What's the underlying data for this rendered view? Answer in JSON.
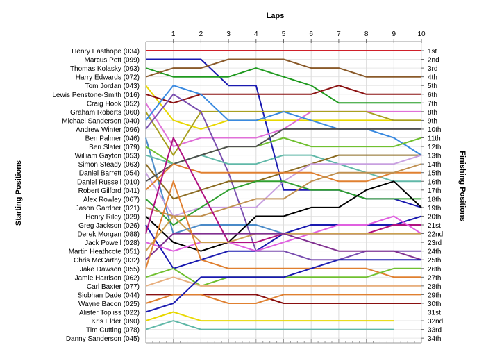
{
  "chart_data": {
    "type": "line",
    "title": "Laps",
    "xlabel": "Laps",
    "ylabel_left": "Starting Positions",
    "ylabel_right": "Finishing Positions",
    "laps": [
      1,
      2,
      3,
      4,
      5,
      6,
      7,
      8,
      9,
      10
    ],
    "position_labels": [
      "1st",
      "2nd",
      "3rd",
      "4th",
      "5th",
      "6th",
      "7th",
      "8th",
      "9th",
      "10th",
      "11th",
      "12th",
      "13th",
      "14th",
      "15th",
      "16th",
      "17th",
      "18th",
      "19th",
      "20th",
      "21st",
      "22nd",
      "23rd",
      "24th",
      "25th",
      "26th",
      "27th",
      "28th",
      "29th",
      "30th",
      "31st",
      "32nd",
      "33rd",
      "34th"
    ],
    "grid": true,
    "series": [
      {
        "name": "Henry Easthope (034)",
        "color": "#d0202a",
        "positions": [
          1,
          1,
          1,
          1,
          1,
          1,
          1,
          1,
          1,
          1,
          1
        ]
      },
      {
        "name": "Marcus Pett (099)",
        "color": "#1a1ab0",
        "positions": [
          2,
          2,
          2,
          5,
          5,
          17,
          17,
          17,
          18,
          18,
          19
        ]
      },
      {
        "name": "Thomas Kolasky (093)",
        "color": "#1f9a1f",
        "positions": [
          3,
          4,
          4,
          4,
          3,
          4,
          5,
          7,
          7,
          7,
          7
        ]
      },
      {
        "name": "Harry Edwards (072)",
        "color": "#8a5a2a",
        "positions": [
          4,
          3,
          3,
          2,
          2,
          2,
          3,
          3,
          4,
          4,
          4
        ]
      },
      {
        "name": "Tom Jordan (043)",
        "color": "#e8d800",
        "positions": [
          5,
          9,
          10,
          9,
          9,
          9,
          9,
          9,
          9,
          9,
          9
        ]
      },
      {
        "name": "Lewis Penstone-Smith (016)",
        "color": "#8a1010",
        "positions": [
          6,
          7,
          6,
          6,
          6,
          6,
          6,
          5,
          6,
          6,
          6
        ]
      },
      {
        "name": "Craig Hook (052)",
        "color": "#e070d8",
        "positions": [
          7,
          12,
          11,
          11,
          11,
          10,
          8,
          8,
          8,
          8,
          8
        ]
      },
      {
        "name": "Graham Roberts (060)",
        "color": "#a8a020",
        "positions": [
          8,
          13,
          8,
          8,
          8,
          8,
          8,
          8,
          8,
          9,
          9
        ]
      },
      {
        "name": "Michael Sanderson (040)",
        "color": "#3a8ae0",
        "positions": [
          9,
          5,
          6,
          9,
          9,
          8,
          9,
          10,
          10,
          11,
          13
        ]
      },
      {
        "name": "Andrew Winter (096)",
        "color": "#7a4fb0",
        "positions": [
          10,
          6,
          8,
          15,
          24,
          24,
          25,
          25,
          24,
          24,
          24
        ]
      },
      {
        "name": "Ben Palmer (046)",
        "color": "#4a8ac8",
        "positions": [
          11,
          22,
          21,
          21,
          21,
          22,
          22,
          22,
          22,
          22,
          22
        ]
      },
      {
        "name": "Ben Slater (079)",
        "color": "#70c030",
        "positions": [
          12,
          14,
          13,
          12,
          12,
          11,
          12,
          12,
          12,
          12,
          11
        ]
      },
      {
        "name": "William Gayton (053)",
        "color": "#60b8a8",
        "positions": [
          13,
          14,
          13,
          14,
          14,
          13,
          13,
          14,
          15,
          16,
          16
        ]
      },
      {
        "name": "Simon Steady (063)",
        "color": "#8a6a20",
        "positions": [
          14,
          18,
          17,
          16,
          16,
          15,
          14,
          13,
          13,
          13,
          13
        ]
      },
      {
        "name": "Daniel Barrett (054)",
        "color": "#c8a0e0",
        "positions": [
          15,
          20,
          19,
          19,
          19,
          16,
          14,
          14,
          14,
          14,
          13
        ]
      },
      {
        "name": "Daniel Russell (010)",
        "color": "#505050",
        "positions": [
          16,
          14,
          13,
          12,
          12,
          10,
          10,
          10,
          10,
          10,
          10
        ]
      },
      {
        "name": "Robert Gilford (041)",
        "color": "#e08030",
        "positions": [
          17,
          14,
          15,
          15,
          15,
          15,
          15,
          16,
          16,
          15,
          15
        ]
      },
      {
        "name": "Alex Rowley (067)",
        "color": "#30a030",
        "positions": [
          18,
          21,
          19,
          17,
          16,
          16,
          17,
          17,
          18,
          18,
          18
        ]
      },
      {
        "name": "Jason Gardner (021)",
        "color": "#c09050",
        "positions": [
          19,
          20,
          20,
          19,
          18,
          18,
          16,
          15,
          15,
          15,
          14
        ]
      },
      {
        "name": "Henry Riley (029)",
        "color": "#000000",
        "positions": [
          20,
          23,
          24,
          23,
          20,
          20,
          19,
          19,
          17,
          16,
          19
        ]
      },
      {
        "name": "Greg Jackson (026)",
        "color": "#1a1ab0",
        "positions": [
          21,
          26,
          25,
          24,
          24,
          22,
          21,
          21,
          21,
          21,
          20
        ]
      },
      {
        "name": "Derek Morgan (088)",
        "color": "#b01080",
        "positions": [
          22,
          11,
          17,
          23,
          23,
          22,
          22,
          22,
          22,
          21,
          21
        ]
      },
      {
        "name": "Jack Powell (028)",
        "color": "#e060e0",
        "positions": [
          23,
          24,
          23,
          23,
          24,
          23,
          22,
          21,
          21,
          20,
          22
        ]
      },
      {
        "name": "Martin Heathcote (051)",
        "color": "#cca050",
        "positions": [
          24,
          20,
          23,
          23,
          22,
          22,
          22,
          22,
          22,
          22,
          22
        ]
      },
      {
        "name": "Chris McCarthy (032)",
        "color": "#803090",
        "positions": [
          25,
          22,
          22,
          22,
          22,
          22,
          23,
          24,
          24,
          24,
          25
        ]
      },
      {
        "name": "Jake Dawson (055)",
        "color": "#e08030",
        "positions": [
          26,
          16,
          25,
          26,
          26,
          26,
          26,
          26,
          26,
          27,
          27
        ]
      },
      {
        "name": "Jamie Harrison (062)",
        "color": "#70c030",
        "positions": [
          27,
          26,
          28,
          27,
          27,
          27,
          27,
          27,
          27,
          26,
          26
        ]
      },
      {
        "name": "Carl Baxter (077)",
        "color": "#e8b080",
        "positions": [
          28,
          27,
          28,
          28,
          28,
          28,
          28,
          28,
          28,
          28,
          28
        ]
      },
      {
        "name": "Siobhan Dade (044)",
        "color": "#8a1010",
        "positions": [
          29,
          29,
          29,
          29,
          29,
          30,
          30,
          30,
          30,
          30,
          30
        ]
      },
      {
        "name": "Wayne Bacon (025)",
        "color": "#e08030",
        "positions": [
          30,
          29,
          29,
          30,
          30,
          29,
          29,
          29,
          29,
          29,
          29
        ]
      },
      {
        "name": "Alister Topliss (022)",
        "color": "#1a1ab0",
        "positions": [
          31,
          30,
          27,
          27,
          27,
          27,
          26,
          25,
          25,
          25,
          25
        ]
      },
      {
        "name": "Kris Elder (090)",
        "color": "#e8d800",
        "positions": [
          32,
          31,
          32,
          32,
          32,
          32,
          32,
          32,
          32,
          32,
          null
        ]
      },
      {
        "name": "Tim Cutting (078)",
        "color": "#60b8a8",
        "positions": [
          33,
          32,
          33,
          33,
          33,
          33,
          33,
          33,
          33,
          33,
          null
        ]
      },
      {
        "name": "Danny Sanderson (045)",
        "color": "#999999",
        "positions": [
          34,
          null,
          null,
          null,
          null,
          null,
          null,
          null,
          null,
          null,
          null
        ]
      }
    ]
  }
}
